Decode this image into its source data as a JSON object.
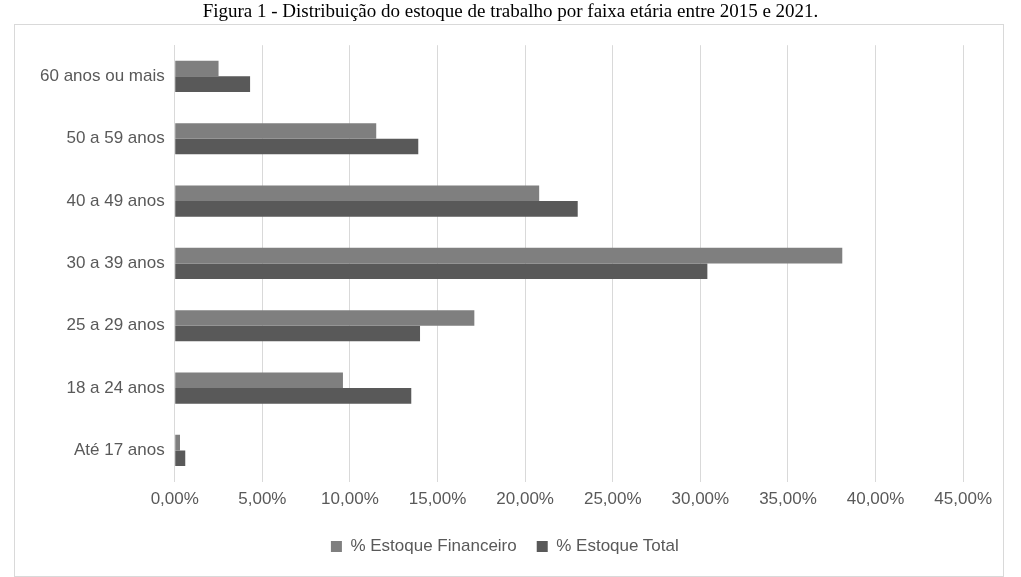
{
  "chart_data": {
    "type": "bar",
    "orientation": "horizontal",
    "title": "Figura 1 - Distribuição do estoque de trabalho por faixa etária entre 2015 e 2021.",
    "categories": [
      "60 anos ou mais",
      "50 a 59 anos",
      "40 a 49 anos",
      "30 a 39 anos",
      "25 a 29 anos",
      "18 a 24 anos",
      "Até 17 anos"
    ],
    "series": [
      {
        "name": "% Estoque Financeiro",
        "color": "#7f7f7f",
        "values": [
          2.5,
          11.5,
          20.8,
          38.1,
          17.1,
          9.6,
          0.3
        ]
      },
      {
        "name": "% Estoque Total",
        "color": "#595959",
        "values": [
          4.3,
          13.9,
          23.0,
          30.4,
          14.0,
          13.5,
          0.6
        ]
      }
    ],
    "xlim": [
      0,
      45
    ],
    "xticks": [
      {
        "value": 0,
        "label": "0,00%"
      },
      {
        "value": 5,
        "label": "5,00%"
      },
      {
        "value": 10,
        "label": "10,00%"
      },
      {
        "value": 15,
        "label": "15,00%"
      },
      {
        "value": 20,
        "label": "20,00%"
      },
      {
        "value": 25,
        "label": "25,00%"
      },
      {
        "value": 30,
        "label": "30,00%"
      },
      {
        "value": 35,
        "label": "35,00%"
      },
      {
        "value": 40,
        "label": "40,00%"
      },
      {
        "value": 45,
        "label": "45,00%"
      }
    ],
    "grid": "x",
    "legend": "bottom"
  }
}
